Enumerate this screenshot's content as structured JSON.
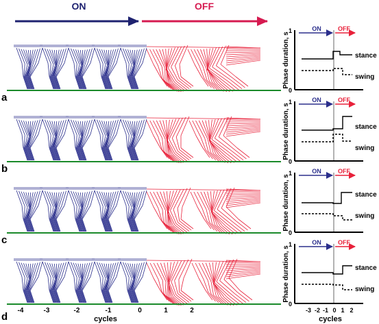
{
  "header": {
    "on_label": "ON",
    "off_label": "OFF"
  },
  "colors": {
    "on": "#2b2f8c",
    "off": "#e8213a",
    "ground": "#1a8a2a",
    "axis": "#000000"
  },
  "stick_diagram": {
    "on_cycles": 5,
    "off_cycles": 2,
    "x_axis_label": "cycles",
    "x_ticks": [
      "-4",
      "-3",
      "-2",
      "-1",
      "0",
      "1",
      "2"
    ]
  },
  "panels": [
    {
      "letter": "a",
      "ylabel": "Phase duration, s",
      "ytick_top": "1",
      "ytick_bottom": "0",
      "on_label": "ON",
      "off_label": "OFF",
      "stance_label": "stance",
      "swing_label": "swing"
    },
    {
      "letter": "b",
      "ylabel": "Phase duration, s",
      "ytick_top": "1",
      "ytick_bottom": "0",
      "on_label": "ON",
      "off_label": "OFF",
      "stance_label": "stance",
      "swing_label": "swing"
    },
    {
      "letter": "c",
      "ylabel": "Phase duration, s",
      "ytick_top": "1",
      "ytick_bottom": "0",
      "on_label": "ON",
      "off_label": "OFF",
      "stance_label": "stance",
      "swing_label": "swing"
    },
    {
      "letter": "d",
      "ylabel": "Phase duration, s",
      "ytick_top": "1",
      "ytick_bottom": "0",
      "on_label": "ON",
      "off_label": "OFF",
      "stance_label": "stance",
      "swing_label": "swing"
    }
  ],
  "phase_chart": {
    "x_ticks": [
      "-3",
      "-2",
      "-1",
      "0",
      "1",
      "2"
    ],
    "x_axis_label": "cycles"
  }
}
